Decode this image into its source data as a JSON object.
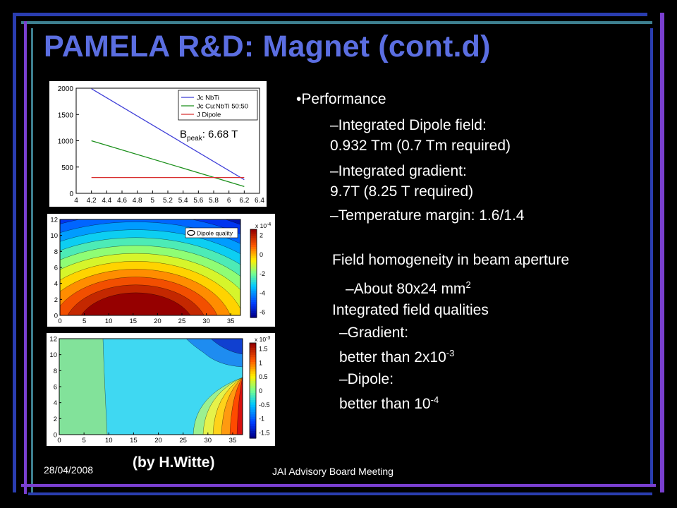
{
  "slide": {
    "title": "PAMELA R&D: Magnet (cont.d)",
    "bullets": {
      "main": "•Performance",
      "sub1_line1": "–Integrated Dipole field:",
      "sub1_line2": "0.932 Tm (0.7 Tm required)",
      "sub2_line1": "–Integrated gradient:",
      "sub2_line2": "9.7T (8.25 T required)",
      "sub3": "–Temperature margin: 1.6/1.4",
      "homog": "Field homogeneity in beam aperture",
      "aperture_prefix": "–About 80x24 mm",
      "aperture_sup": "2",
      "qualities": "Integrated field qualities",
      "grad_line1": "–Gradient:",
      "grad_line2_prefix": "better than 2x10",
      "grad_sup": "-3",
      "dip_line1": "–Dipole:",
      "dip_line2_prefix": "better than 10",
      "dip_sup": "-4"
    },
    "footer": {
      "date": "28/04/2008",
      "author": "(by H.Witte)",
      "meeting": "JAI Advisory Board Meeting"
    },
    "colors": {
      "title": "#5b6ee1",
      "frame_blue": "#2a3db0",
      "frame_purple": "#7a3fd0",
      "frame_teal": "#3d7f8f"
    }
  },
  "chart_data": [
    {
      "type": "line",
      "title": "",
      "xlabel": "",
      "ylabel": "",
      "xlim": [
        4,
        6.4
      ],
      "ylim": [
        0,
        2000
      ],
      "xticks": [
        "4",
        "4.2",
        "4.4",
        "4.6",
        "4.8",
        "5",
        "5.2",
        "5.4",
        "5.6",
        "5.8",
        "6",
        "6.2",
        "6.4"
      ],
      "yticks": [
        "0",
        "500",
        "1000",
        "1500",
        "2000"
      ],
      "legend_position": "top-right",
      "annotation": {
        "prefix": "B",
        "sub": "peak",
        "suffix": ": 6.68 T"
      },
      "series": [
        {
          "name": "Jc NbTi",
          "color": "#3f3fd8",
          "x": [
            4.2,
            6.2
          ],
          "y": [
            1990,
            260
          ]
        },
        {
          "name": "Jc Cu:NbTi 50:50",
          "color": "#1a8f1a",
          "x": [
            4.2,
            6.2
          ],
          "y": [
            1000,
            130
          ]
        },
        {
          "name": "J Dipole",
          "color": "#d83030",
          "x": [
            4.2,
            6.2
          ],
          "y": [
            300,
            300
          ]
        }
      ]
    },
    {
      "type": "heatmap",
      "title": "",
      "legend_label": "Dipole quality",
      "xlim": [
        0,
        37
      ],
      "ylim": [
        0,
        12
      ],
      "xticks": [
        "0",
        "5",
        "10",
        "15",
        "20",
        "25",
        "30",
        "35"
      ],
      "yticks": [
        "0",
        "2",
        "4",
        "6",
        "8",
        "10",
        "12"
      ],
      "colorbar_ticks": [
        "2",
        "0",
        "-2",
        "-4",
        "-6"
      ],
      "colorbar_exponent": "x 10",
      "colorbar_exponent_sup": "-4"
    },
    {
      "type": "heatmap",
      "title": "",
      "xlim": [
        0,
        37
      ],
      "ylim": [
        0,
        12
      ],
      "xticks": [
        "0",
        "5",
        "10",
        "15",
        "20",
        "25",
        "30",
        "35"
      ],
      "yticks": [
        "0",
        "2",
        "4",
        "6",
        "8",
        "10",
        "12"
      ],
      "colorbar_ticks": [
        "1.5",
        "1",
        "0.5",
        "0",
        "-0.5",
        "-1",
        "-1.5"
      ],
      "colorbar_exponent": "x 10",
      "colorbar_exponent_sup": "-3"
    }
  ]
}
